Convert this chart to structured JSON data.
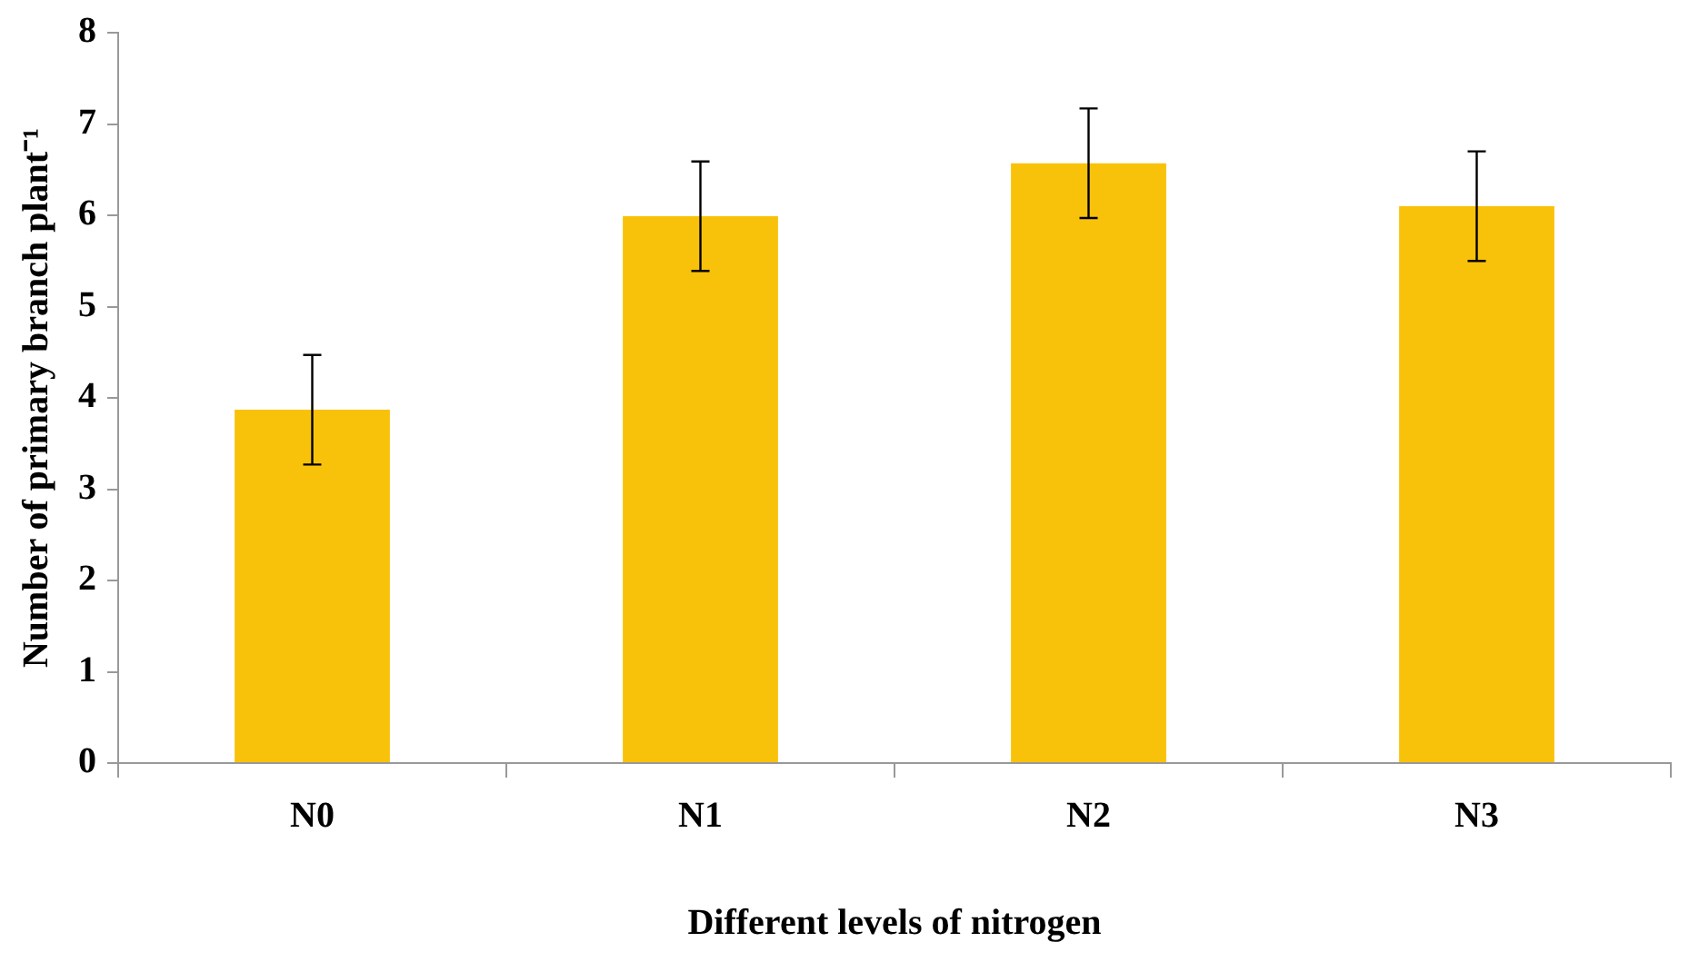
{
  "chart_data": {
    "type": "bar",
    "xlabel": "Different levels of nitrogen",
    "ylabel": "Number of primary branch plant⁻¹",
    "categories": [
      "N0",
      "N1",
      "N2",
      "N3"
    ],
    "values": [
      3.87,
      5.99,
      6.57,
      6.1
    ],
    "errors": [
      0.6,
      0.6,
      0.6,
      0.6
    ],
    "color": "#f9c20a",
    "ylim": [
      0,
      8
    ],
    "yticks": [
      0,
      1,
      2,
      3,
      4,
      5,
      6,
      7,
      8
    ],
    "grid": false,
    "legend": false
  }
}
